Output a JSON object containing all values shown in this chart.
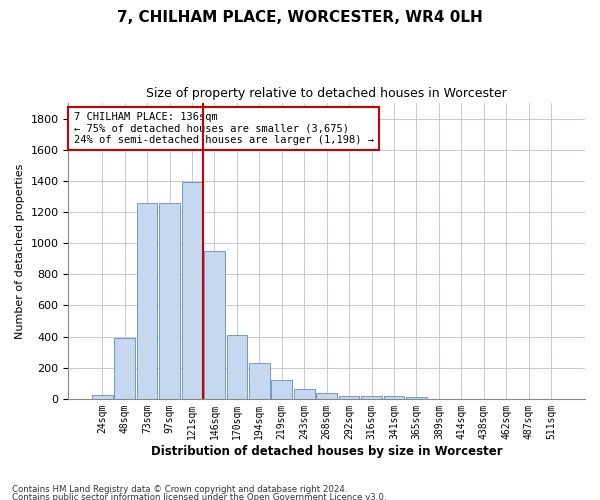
{
  "title": "7, CHILHAM PLACE, WORCESTER, WR4 0LH",
  "subtitle": "Size of property relative to detached houses in Worcester",
  "xlabel": "Distribution of detached houses by size in Worcester",
  "ylabel": "Number of detached properties",
  "bar_color": "#c5d8f0",
  "bar_edge_color": "#5a8fc0",
  "grid_color": "#c8c8d8",
  "background_color": "#ffffff",
  "categories": [
    "24sqm",
    "48sqm",
    "73sqm",
    "97sqm",
    "121sqm",
    "146sqm",
    "170sqm",
    "194sqm",
    "219sqm",
    "243sqm",
    "268sqm",
    "292sqm",
    "316sqm",
    "341sqm",
    "365sqm",
    "389sqm",
    "414sqm",
    "438sqm",
    "462sqm",
    "487sqm",
    "511sqm"
  ],
  "values": [
    25,
    390,
    1260,
    1260,
    1395,
    950,
    410,
    230,
    120,
    65,
    40,
    20,
    15,
    20,
    10,
    0,
    0,
    0,
    0,
    0,
    0
  ],
  "ylim": [
    0,
    1900
  ],
  "yticks": [
    0,
    200,
    400,
    600,
    800,
    1000,
    1200,
    1400,
    1600,
    1800
  ],
  "vline_color": "#cc0000",
  "annotation_text": "7 CHILHAM PLACE: 136sqm\n← 75% of detached houses are smaller (3,675)\n24% of semi-detached houses are larger (1,198) →",
  "annotation_box_color": "#cc0000",
  "footnote_line1": "Contains HM Land Registry data © Crown copyright and database right 2024.",
  "footnote_line2": "Contains public sector information licensed under the Open Government Licence v3.0."
}
